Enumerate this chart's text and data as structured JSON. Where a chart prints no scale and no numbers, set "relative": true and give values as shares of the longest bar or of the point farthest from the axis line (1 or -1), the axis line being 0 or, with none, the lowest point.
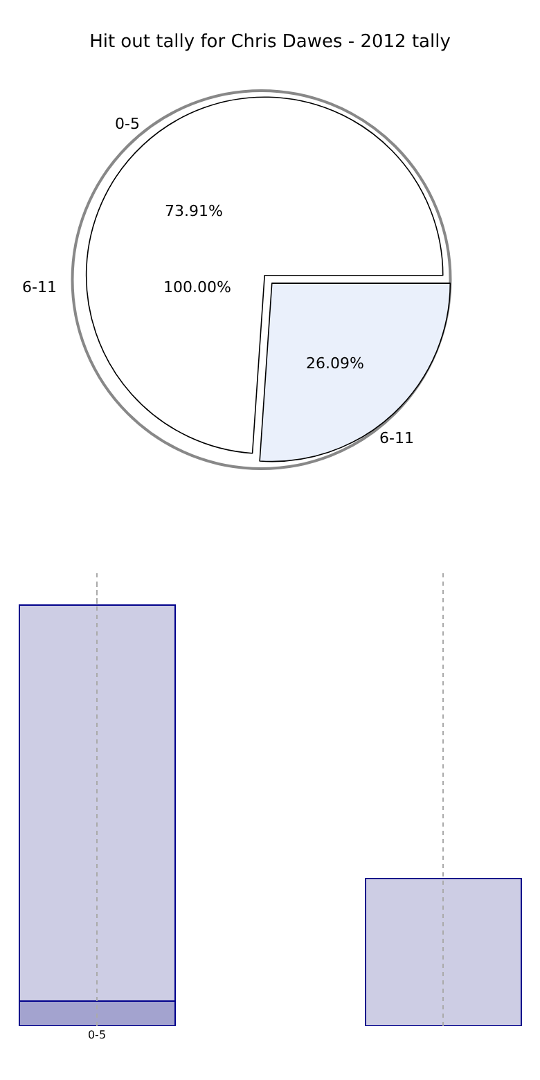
{
  "chart_data": [
    {
      "type": "pie",
      "title": "Hit out tally for Chris Dawes - 2012 tally",
      "categories": [
        "0-5",
        "6-11"
      ],
      "values": [
        73.91,
        26.09
      ],
      "colors": [
        "#ffffff",
        "#eaf0fb"
      ],
      "value_labels": [
        "73.91%",
        "26.09%"
      ]
    },
    {
      "type": "pie",
      "categories": [
        "6-11"
      ],
      "values": [
        100
      ],
      "colors": [
        "#ffffff"
      ],
      "value_labels": [
        "100.00%"
      ]
    },
    {
      "type": "bar",
      "relative": true,
      "stacked": true,
      "categories": [
        "0-5",
        null
      ],
      "grid": "x",
      "series": [
        {
          "color": "#a3a3cf",
          "values": [
            0.06,
            null
          ]
        },
        {
          "color": "#cdcde4",
          "values": [
            0.94,
            0.35
          ]
        }
      ]
    }
  ]
}
